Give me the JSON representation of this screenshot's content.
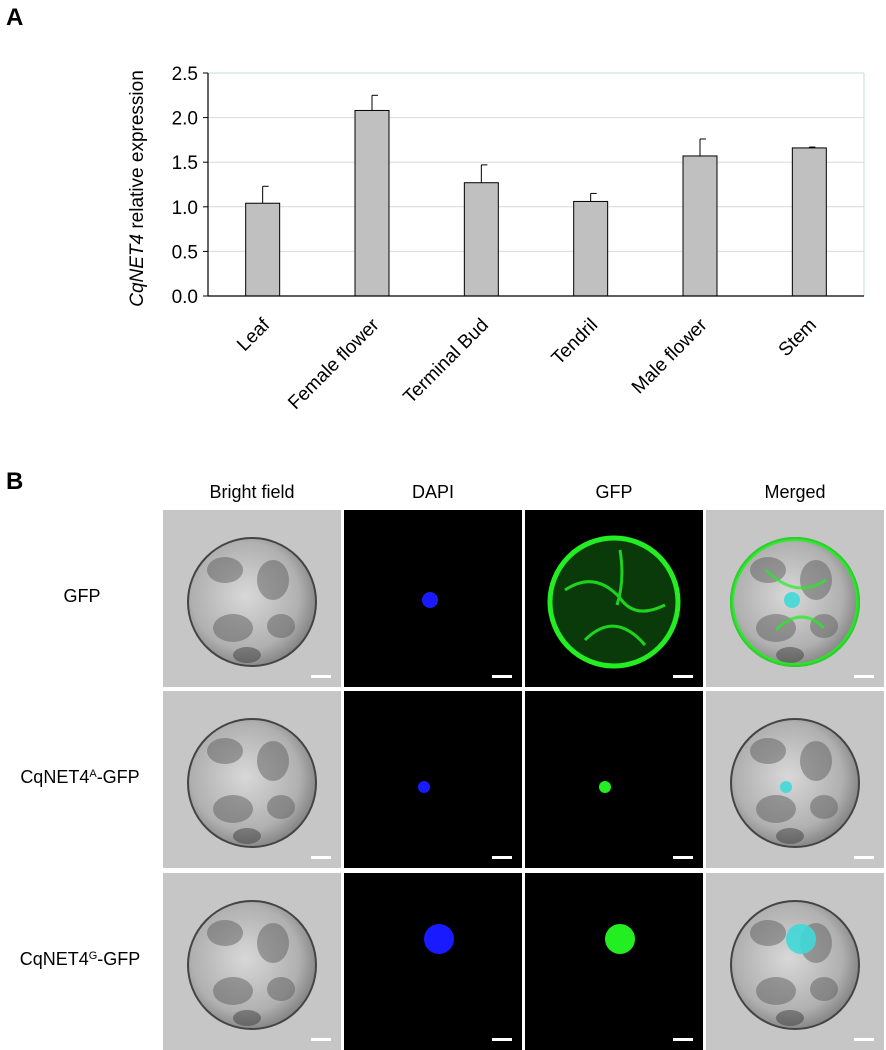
{
  "panels": {
    "a": "A",
    "b": "B"
  },
  "chart_data": {
    "type": "bar",
    "categories": [
      "Leaf",
      "Female flower",
      "Terminal Bud",
      "Tendril",
      "Male flower",
      "Stem"
    ],
    "values": [
      1.04,
      2.08,
      1.27,
      1.06,
      1.57,
      1.66
    ],
    "errors": [
      0.19,
      0.17,
      0.2,
      0.09,
      0.19,
      0.01
    ],
    "title": "",
    "xlabel": "",
    "ylabel_italic": "CqNET4",
    "ylabel_rest": " relative expression",
    "ylim": [
      0,
      2.5
    ],
    "yticks": [
      "0.0",
      "0.5",
      "1.0",
      "1.5",
      "2.0",
      "2.5"
    ],
    "grid": true,
    "bar_color": "#c0c0c0",
    "grid_color": "#d9d9d9",
    "frame_color": "#bfe0d8"
  },
  "microscopy": {
    "columns": [
      "Bright field",
      "DAPI",
      "GFP",
      "Merged"
    ],
    "rows": [
      {
        "base": "GFP",
        "sup": "",
        "suffix": ""
      },
      {
        "base": "CqNET4",
        "sup": "A",
        "suffix": "-GFP"
      },
      {
        "base": "CqNET4",
        "sup": "G",
        "suffix": "-GFP"
      }
    ],
    "colors": {
      "dapi": "#1a1aff",
      "gfp": "#22ee22",
      "merge": "#40d8d8"
    }
  }
}
